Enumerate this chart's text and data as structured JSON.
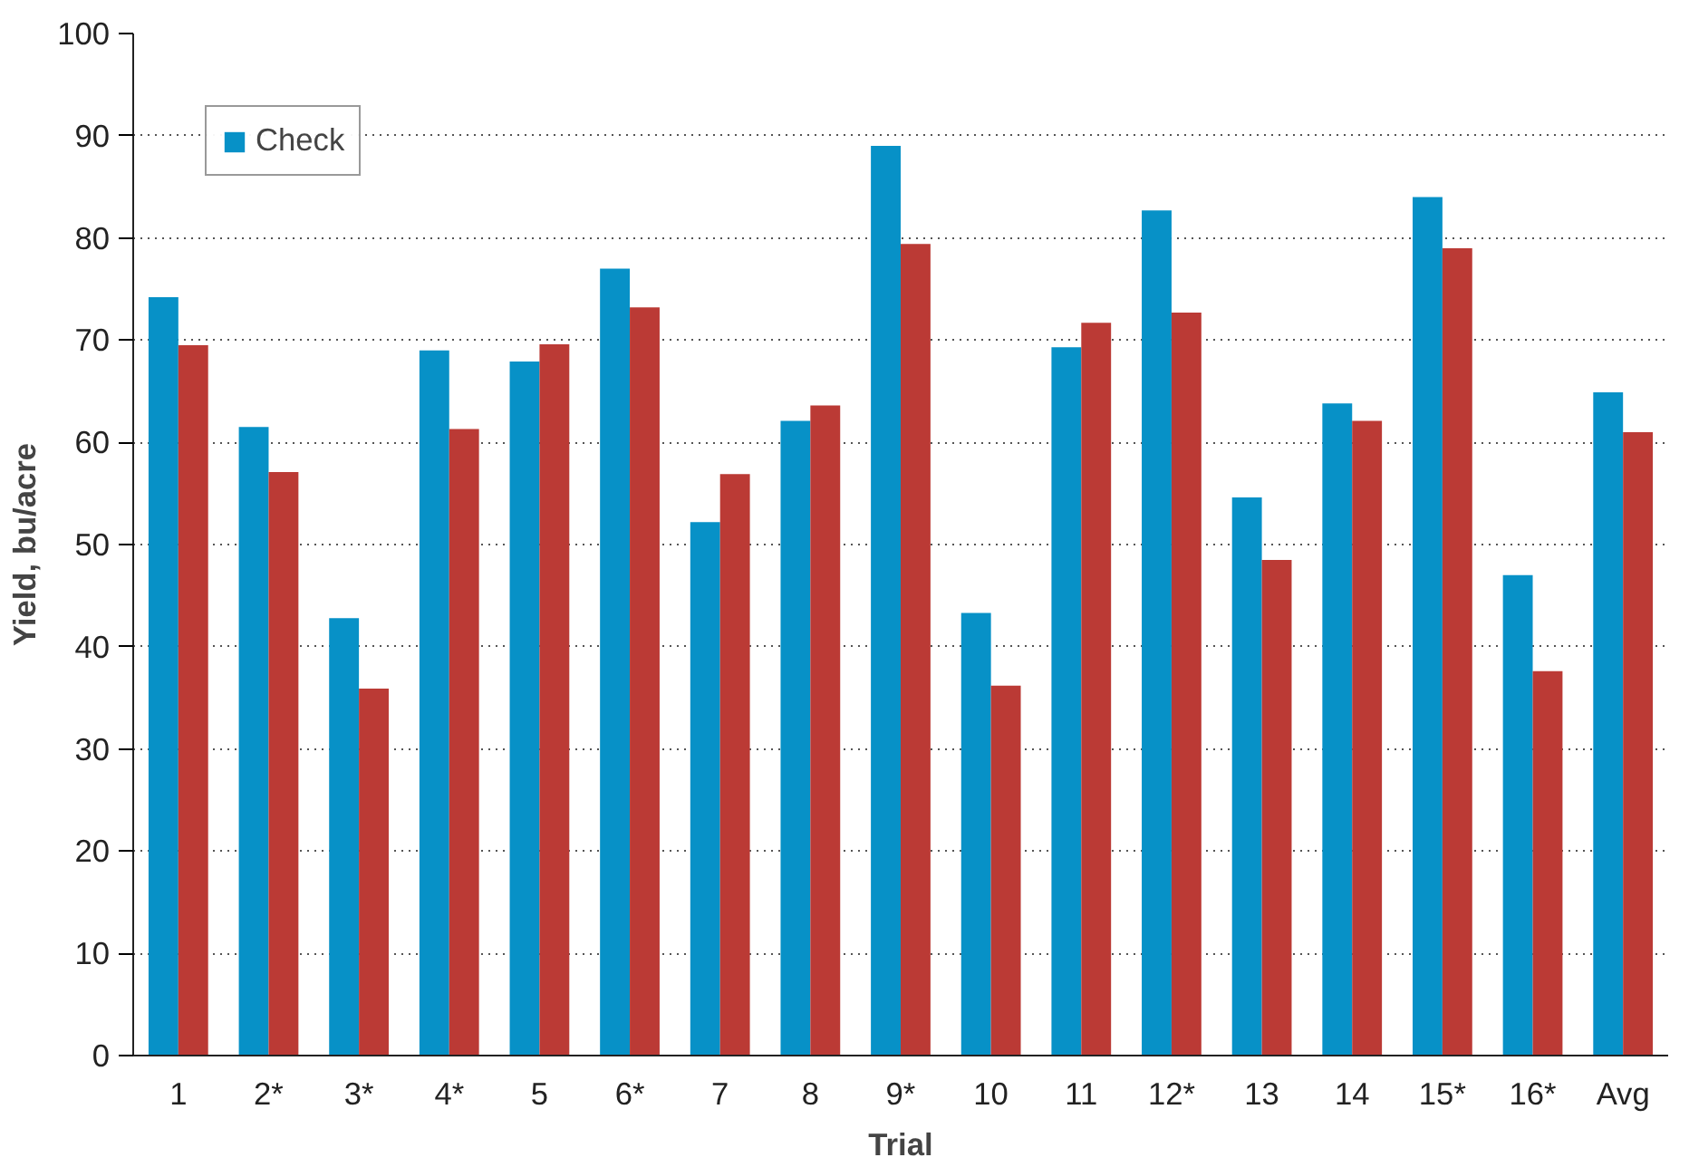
{
  "chart_data": {
    "type": "bar",
    "xlabel": "Trial",
    "ylabel": "Yield, bu/acre",
    "categories": [
      "1",
      "2*",
      "3*",
      "4*",
      "5",
      "6*",
      "7",
      "8",
      "9*",
      "10",
      "11",
      "12*",
      "13",
      "14",
      "15*",
      "16*",
      "Avg"
    ],
    "series": [
      {
        "name": "Check",
        "color": "#0791c7",
        "values": [
          74.2,
          61.5,
          42.8,
          69,
          67.9,
          77,
          52.2,
          62.1,
          89,
          43.3,
          69.3,
          82.7,
          54.6,
          63.8,
          84,
          47,
          64.9
        ]
      },
      {
        "color": "#bb3a35",
        "values": [
          69.5,
          57.1,
          35.9,
          61.3,
          69.6,
          73.2,
          56.9,
          63.6,
          79.4,
          36.2,
          71.7,
          72.7,
          48.5,
          62.1,
          79,
          37.6,
          61
        ]
      }
    ],
    "ylim": [
      0,
      100
    ],
    "yticks": [
      0,
      10,
      20,
      30,
      40,
      50,
      60,
      70,
      80,
      90,
      100
    ],
    "grid": "y",
    "legend": "top left"
  }
}
